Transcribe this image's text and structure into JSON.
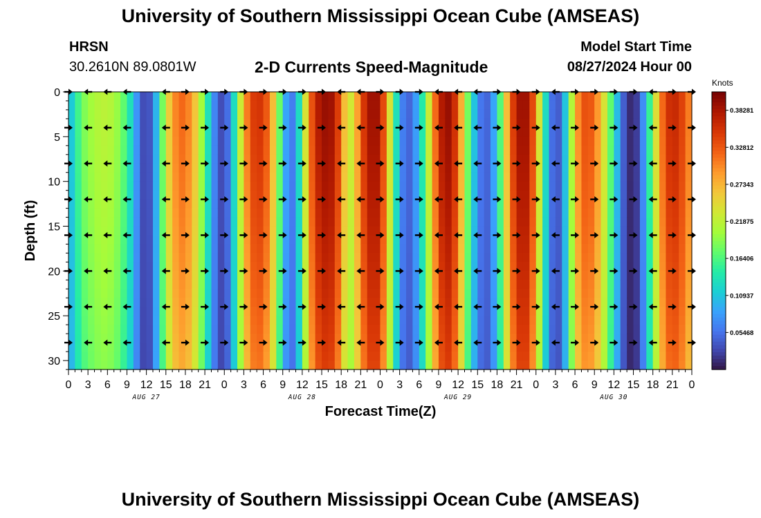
{
  "header": {
    "title": "University of Southern Mississippi Ocean Cube (AMSEAS)",
    "station": "HRSN",
    "coordinates": "30.2610N  89.0801W",
    "subtitle": "2-D Currents Speed-Magnitude",
    "model_start_label": "Model Start Time",
    "model_start_value": "08/27/2024 Hour 00",
    "footer_title": "University of Southern Mississippi Ocean Cube (AMSEAS)"
  },
  "colors": {
    "scale": [
      "#30123b",
      "#4145ab",
      "#4675ed",
      "#39a2fc",
      "#1bcfd4",
      "#24eca6",
      "#61fc6c",
      "#a4fc3b",
      "#d1e834",
      "#f3c63a",
      "#fe9b2d",
      "#f36315",
      "#d93806",
      "#b11901",
      "#7a0403"
    ]
  },
  "chart_data": {
    "type": "heatmap",
    "title": "2-D Currents Speed-Magnitude",
    "xlabel": "Forecast Time(Z)",
    "ylabel": "Depth (ft)",
    "x_hours": [
      0,
      96
    ],
    "ylim": [
      0,
      31
    ],
    "x_tick_labels": [
      "0",
      "3",
      "6",
      "9",
      "12",
      "15",
      "18",
      "21",
      "0",
      "3",
      "6",
      "9",
      "12",
      "15",
      "18",
      "21",
      "0",
      "3",
      "6",
      "9",
      "12",
      "15",
      "18",
      "21",
      "0",
      "3",
      "6",
      "9",
      "12",
      "15",
      "18",
      "21",
      "0"
    ],
    "y_ticks": [
      0,
      5,
      10,
      15,
      20,
      25,
      30
    ],
    "date_labels": [
      {
        "hour": 12,
        "label": "AUG 27"
      },
      {
        "hour": 36,
        "label": "AUG 28"
      },
      {
        "hour": 60,
        "label": "AUG 29"
      },
      {
        "hour": 84,
        "label": "AUG 30"
      }
    ],
    "colorbar": {
      "unit": "Knots",
      "min": 0.0,
      "max": 0.41,
      "tick_labels": [
        "0.05468",
        "0.10937",
        "0.16406",
        "0.21875",
        "0.27343",
        "0.32812",
        "0.38281"
      ],
      "tick_values": [
        0.05468,
        0.10937,
        0.16406,
        0.21875,
        0.27343,
        0.32812,
        0.38281
      ]
    },
    "speed_profile_hours": [
      0,
      1,
      2,
      3,
      4,
      5,
      6,
      7,
      8,
      9,
      10,
      11,
      12,
      13,
      14,
      15,
      16,
      17,
      18,
      19,
      20,
      21,
      22,
      23,
      24,
      25,
      26,
      27,
      28,
      29,
      30,
      31,
      32,
      33,
      34,
      35,
      36,
      37,
      38,
      39,
      40,
      41,
      42,
      43,
      44,
      45,
      46,
      47,
      48,
      49,
      50,
      51,
      52,
      53,
      54,
      55,
      56,
      57,
      58,
      59,
      60,
      61,
      62,
      63,
      64,
      65,
      66,
      67,
      68,
      69,
      70,
      71,
      72,
      73,
      74,
      75,
      76,
      77,
      78,
      79,
      80,
      81,
      82,
      83,
      84,
      85,
      86,
      87,
      88,
      89,
      90,
      91,
      92,
      93,
      94,
      95,
      96
    ],
    "speed_profile_knots": [
      0.09,
      0.14,
      0.18,
      0.2,
      0.21,
      0.22,
      0.22,
      0.21,
      0.19,
      0.16,
      0.11,
      0.05,
      0.02,
      0.06,
      0.14,
      0.23,
      0.29,
      0.32,
      0.32,
      0.29,
      0.24,
      0.17,
      0.1,
      0.04,
      0.03,
      0.08,
      0.18,
      0.28,
      0.34,
      0.36,
      0.35,
      0.31,
      0.23,
      0.13,
      0.05,
      0.08,
      0.18,
      0.3,
      0.37,
      0.39,
      0.4,
      0.38,
      0.32,
      0.22,
      0.25,
      0.33,
      0.38,
      0.4,
      0.38,
      0.3,
      0.18,
      0.09,
      0.04,
      0.06,
      0.11,
      0.18,
      0.28,
      0.36,
      0.4,
      0.39,
      0.33,
      0.23,
      0.14,
      0.08,
      0.04,
      0.06,
      0.12,
      0.22,
      0.32,
      0.38,
      0.4,
      0.38,
      0.3,
      0.18,
      0.08,
      0.03,
      0.06,
      0.16,
      0.27,
      0.33,
      0.34,
      0.32,
      0.27,
      0.21,
      0.14,
      0.07,
      0.02,
      0.01,
      0.04,
      0.11,
      0.2,
      0.29,
      0.35,
      0.37,
      0.36,
      0.33,
      0.29
    ],
    "vector_depths_ft": [
      0,
      4,
      8,
      12,
      16,
      20,
      24,
      28
    ],
    "vector_hours": [
      0,
      3,
      6,
      9,
      15,
      18,
      21,
      24,
      27,
      30,
      33,
      36,
      39,
      42,
      45,
      48,
      51,
      54,
      57,
      60,
      63,
      66,
      69,
      72,
      75,
      78,
      81,
      84,
      87,
      90,
      93,
      96
    ],
    "vector_directions": [
      "E",
      "W",
      "W",
      "W",
      "W",
      "E",
      "E",
      "E",
      "E",
      "E",
      "E",
      "E",
      "E",
      "W",
      "W",
      "E",
      "E",
      "E",
      "W",
      "W",
      "W",
      "E",
      "E",
      "E",
      "W",
      "E",
      "E",
      "E",
      "E",
      "W",
      "E",
      "E"
    ]
  }
}
